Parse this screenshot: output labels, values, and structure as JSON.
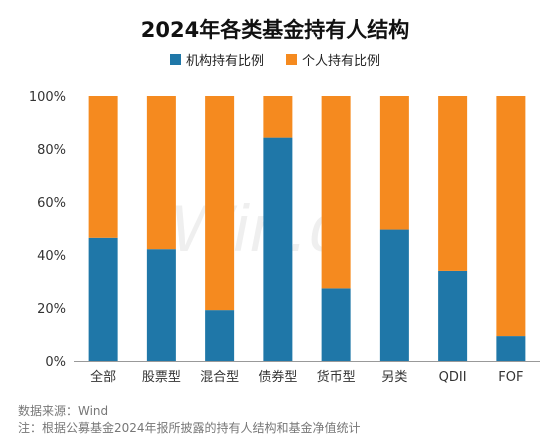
{
  "watermark": "Win.d",
  "footer": {
    "source": "数据来源：Wind",
    "note": "注：根据公募基金2024年报所披露的持有人结构和基金净值统计"
  },
  "colors": {
    "institutional": "#1f77a8",
    "individual": "#f58a1f"
  },
  "chart_data": {
    "type": "bar",
    "stacked": true,
    "title": "2024年各类基金持有人结构",
    "categories": [
      "全部",
      "股票型",
      "混合型",
      "债券型",
      "货币型",
      "另类",
      "QDII",
      "FOF"
    ],
    "series": [
      {
        "name": "机构持有比例",
        "values": [
          46.5,
          42.2,
          19.2,
          84.3,
          27.4,
          49.6,
          34.0,
          9.4
        ]
      },
      {
        "name": "个人持有比例",
        "values": [
          53.5,
          57.8,
          80.8,
          15.7,
          72.6,
          50.4,
          66.0,
          90.6
        ]
      }
    ],
    "ylim": [
      0,
      100
    ],
    "yticks": [
      "0%",
      "20%",
      "40%",
      "60%",
      "80%",
      "100%"
    ],
    "legend_position": "top",
    "grid": false
  }
}
